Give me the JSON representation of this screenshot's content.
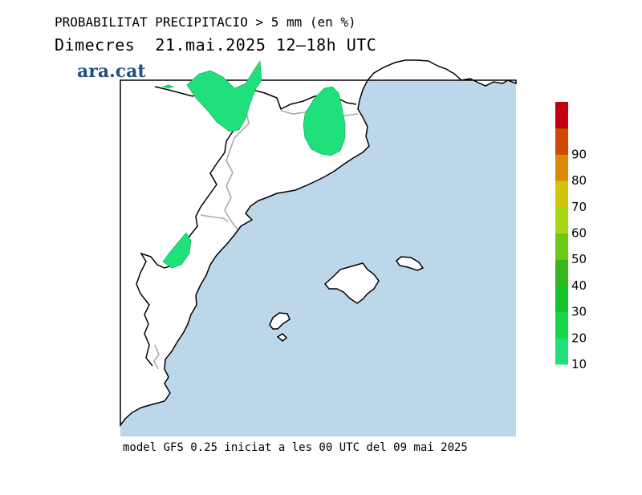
{
  "header": {
    "title": "PROBABILITAT PRECIPITACIO > 5 mm (en %)",
    "subtitle": "Dimecres  21.mai.2025 12–18h UTC"
  },
  "brand": "ara.cat",
  "footer": "model GFS 0.25 iniciat a les 00 UTC del 09 mai 2025",
  "legend": {
    "labels": [
      "10",
      "20",
      "30",
      "40",
      "50",
      "60",
      "70",
      "80",
      "90"
    ],
    "colors": [
      "#1fe07a",
      "#1ad54a",
      "#14c32a",
      "#34b81c",
      "#6ccb16",
      "#a6d818",
      "#d3c50e",
      "#d98a08",
      "#cc4a04",
      "#c00010"
    ]
  },
  "colors": {
    "sea": "#bcd7ea",
    "land": "#ffffff",
    "precip_10_20": "#1fe07a",
    "coast": "#000000",
    "borders": "#aaaaaa"
  }
}
